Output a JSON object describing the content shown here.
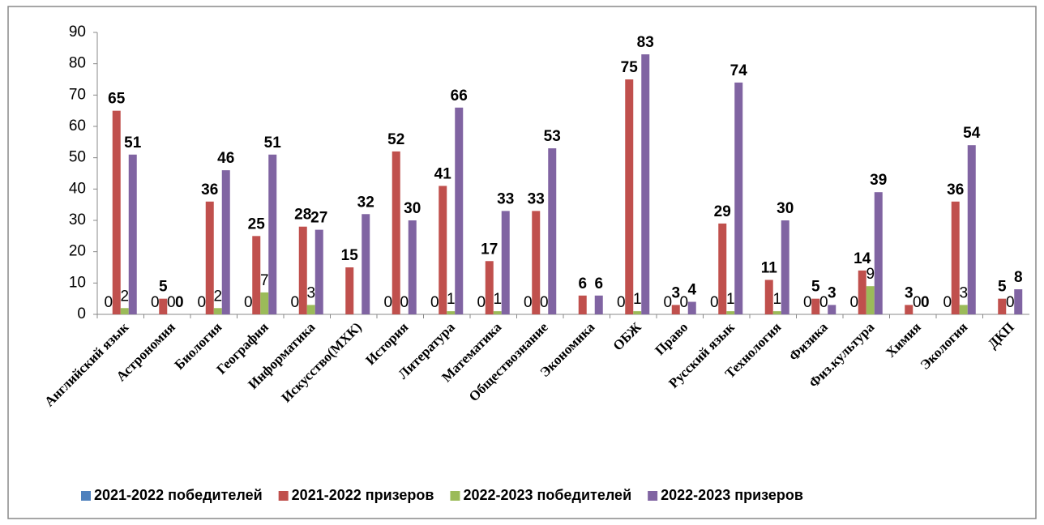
{
  "chart_data": {
    "type": "bar",
    "categories": [
      "Английский язык",
      "Астрономия",
      "Биология",
      "География",
      "Информатика",
      "Искусство(МХК)",
      "История",
      "Литература",
      "Математика",
      "Обществознание",
      "Экономика",
      "ОБЖ",
      "Право",
      "Русский язык",
      "Технология",
      "Физика",
      "Физ.культура",
      "Химия",
      "Экология",
      "ДКП"
    ],
    "series": [
      {
        "name": "2021-2022 победителей",
        "color": "#4f81bd",
        "values": [
          0,
          0,
          0,
          0,
          0,
          null,
          0,
          0,
          0,
          0,
          null,
          0,
          0,
          0,
          null,
          0,
          0,
          null,
          0,
          null
        ]
      },
      {
        "name": "2021-2022 призеров",
        "color": "#c0504d",
        "values": [
          65,
          5,
          36,
          25,
          28,
          15,
          52,
          41,
          17,
          33,
          6,
          75,
          3,
          29,
          11,
          5,
          14,
          3,
          36,
          5
        ]
      },
      {
        "name": "2022-2023 победителей",
        "color": "#9bbb59",
        "values": [
          2,
          0,
          2,
          7,
          3,
          null,
          0,
          1,
          1,
          0,
          null,
          1,
          0,
          1,
          1,
          0,
          9,
          0,
          3,
          0
        ]
      },
      {
        "name": "2022-2023 призеров",
        "color": "#8064a2",
        "values": [
          51,
          0,
          46,
          51,
          27,
          32,
          30,
          66,
          33,
          53,
          6,
          83,
          4,
          74,
          30,
          3,
          39,
          0,
          54,
          8
        ]
      }
    ],
    "ylim": [
      0,
      90
    ],
    "yticks": [
      0,
      10,
      20,
      30,
      40,
      50,
      60,
      70,
      80,
      90
    ]
  }
}
